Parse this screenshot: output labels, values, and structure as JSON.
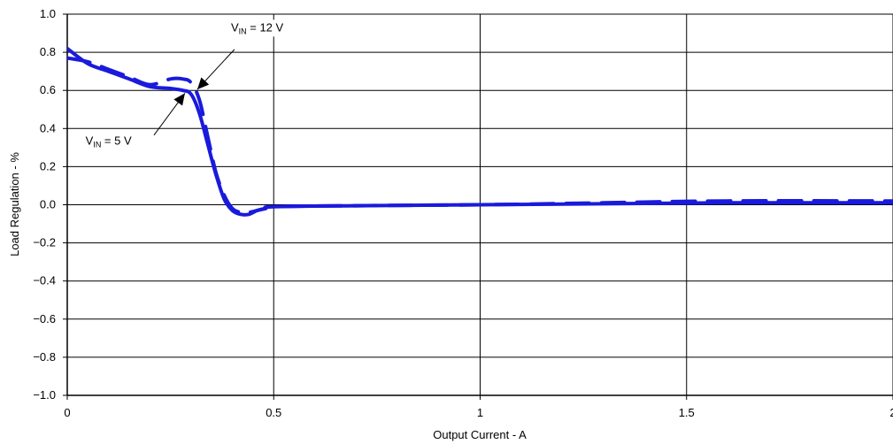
{
  "chart_data": {
    "type": "line",
    "xlabel": "Output Current - A",
    "ylabel": "Load Regulation - %",
    "xlim": [
      0,
      2
    ],
    "ylim": [
      -1.0,
      1.0
    ],
    "xticks": [
      "0",
      "0.5",
      "1",
      "1.5",
      "2"
    ],
    "yticks": [
      "1.0",
      "0.8",
      "0.6",
      "0.4",
      "0.2",
      "0.0",
      "−0.2",
      "−0.4",
      "−0.6",
      "−0.8",
      "−1.0"
    ],
    "grid": true,
    "series_color": "#1a1adc",
    "series": [
      {
        "label_main": "V",
        "label_sub": "IN",
        "label_rest": " = 5 V",
        "style": "solid",
        "x": [
          0,
          0.05,
          0.1,
          0.15,
          0.2,
          0.25,
          0.28,
          0.3,
          0.32,
          0.34,
          0.36,
          0.38,
          0.4,
          0.42,
          0.44,
          0.46,
          0.48,
          0.5,
          0.7,
          1.0,
          1.3,
          1.6,
          2.0
        ],
        "y": [
          0.82,
          0.74,
          0.7,
          0.66,
          0.62,
          0.61,
          0.6,
          0.58,
          0.48,
          0.32,
          0.16,
          0.03,
          -0.03,
          -0.05,
          -0.05,
          -0.03,
          -0.02,
          -0.01,
          -0.005,
          0.0,
          0.005,
          0.01,
          0.01
        ]
      },
      {
        "label_main": "V",
        "label_sub": "IN",
        "label_rest": " = 12 V",
        "style": "dashed",
        "x": [
          0,
          0.05,
          0.1,
          0.15,
          0.2,
          0.25,
          0.28,
          0.3,
          0.32,
          0.34,
          0.36,
          0.38,
          0.4,
          0.42,
          0.44,
          0.46,
          0.48,
          0.5,
          0.7,
          1.0,
          1.3,
          1.6,
          2.0
        ],
        "y": [
          0.77,
          0.75,
          0.71,
          0.67,
          0.63,
          0.66,
          0.66,
          0.64,
          0.55,
          0.36,
          0.17,
          0.05,
          -0.02,
          -0.04,
          -0.04,
          -0.03,
          -0.02,
          -0.01,
          -0.005,
          0.0,
          0.01,
          0.02,
          0.02
        ]
      }
    ],
    "annotations": [
      {
        "series_index": 1,
        "text_x": 0.46,
        "text_y": 0.91,
        "arrow_from": [
          0.405,
          0.815
        ],
        "arrow_to": [
          0.315,
          0.605
        ]
      },
      {
        "series_index": 0,
        "text_x": 0.1,
        "text_y": 0.315,
        "arrow_from": [
          0.21,
          0.365
        ],
        "arrow_to": [
          0.285,
          0.585
        ]
      }
    ]
  }
}
